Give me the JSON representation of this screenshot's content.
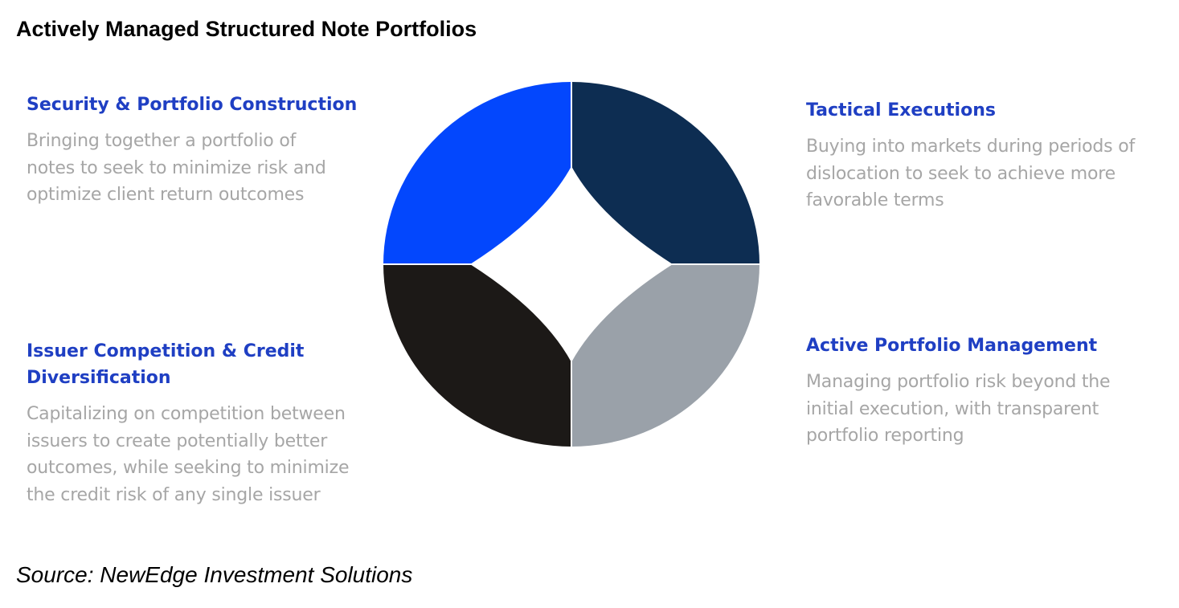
{
  "title": "Actively Managed Structured Note Portfolios",
  "colors": {
    "heading": "#1f3fc3",
    "body_text": "#a6a6a6",
    "quadrant_top_left": "#0347fd",
    "quadrant_top_right": "#0d2d52",
    "quadrant_bottom_left": "#1c1917",
    "quadrant_bottom_right": "#9aa1a9"
  },
  "blocks": {
    "security": {
      "heading": "Security & Portfolio Construction",
      "lines": [
        "Bringing together a portfolio of",
        "notes to seek to minimize risk and",
        "optimize client return outcomes"
      ]
    },
    "tactical": {
      "heading": "Tactical Executions",
      "lines": [
        "Buying into markets during periods of",
        "dislocation to seek to achieve more",
        "favorable terms"
      ]
    },
    "issuer": {
      "heading_lines": [
        "Issuer Competition & Credit",
        "Diversification"
      ],
      "lines": [
        "Capitalizing on competition between",
        "issuers to create potentially better",
        "outcomes, while seeking to minimize",
        "the credit risk of any single issuer"
      ]
    },
    "active": {
      "heading": "Active Portfolio Management",
      "lines": [
        "Managing portfolio risk beyond the",
        "initial execution, with transparent",
        "portfolio reporting"
      ]
    }
  },
  "source": "Source: NewEdge Investment Solutions"
}
